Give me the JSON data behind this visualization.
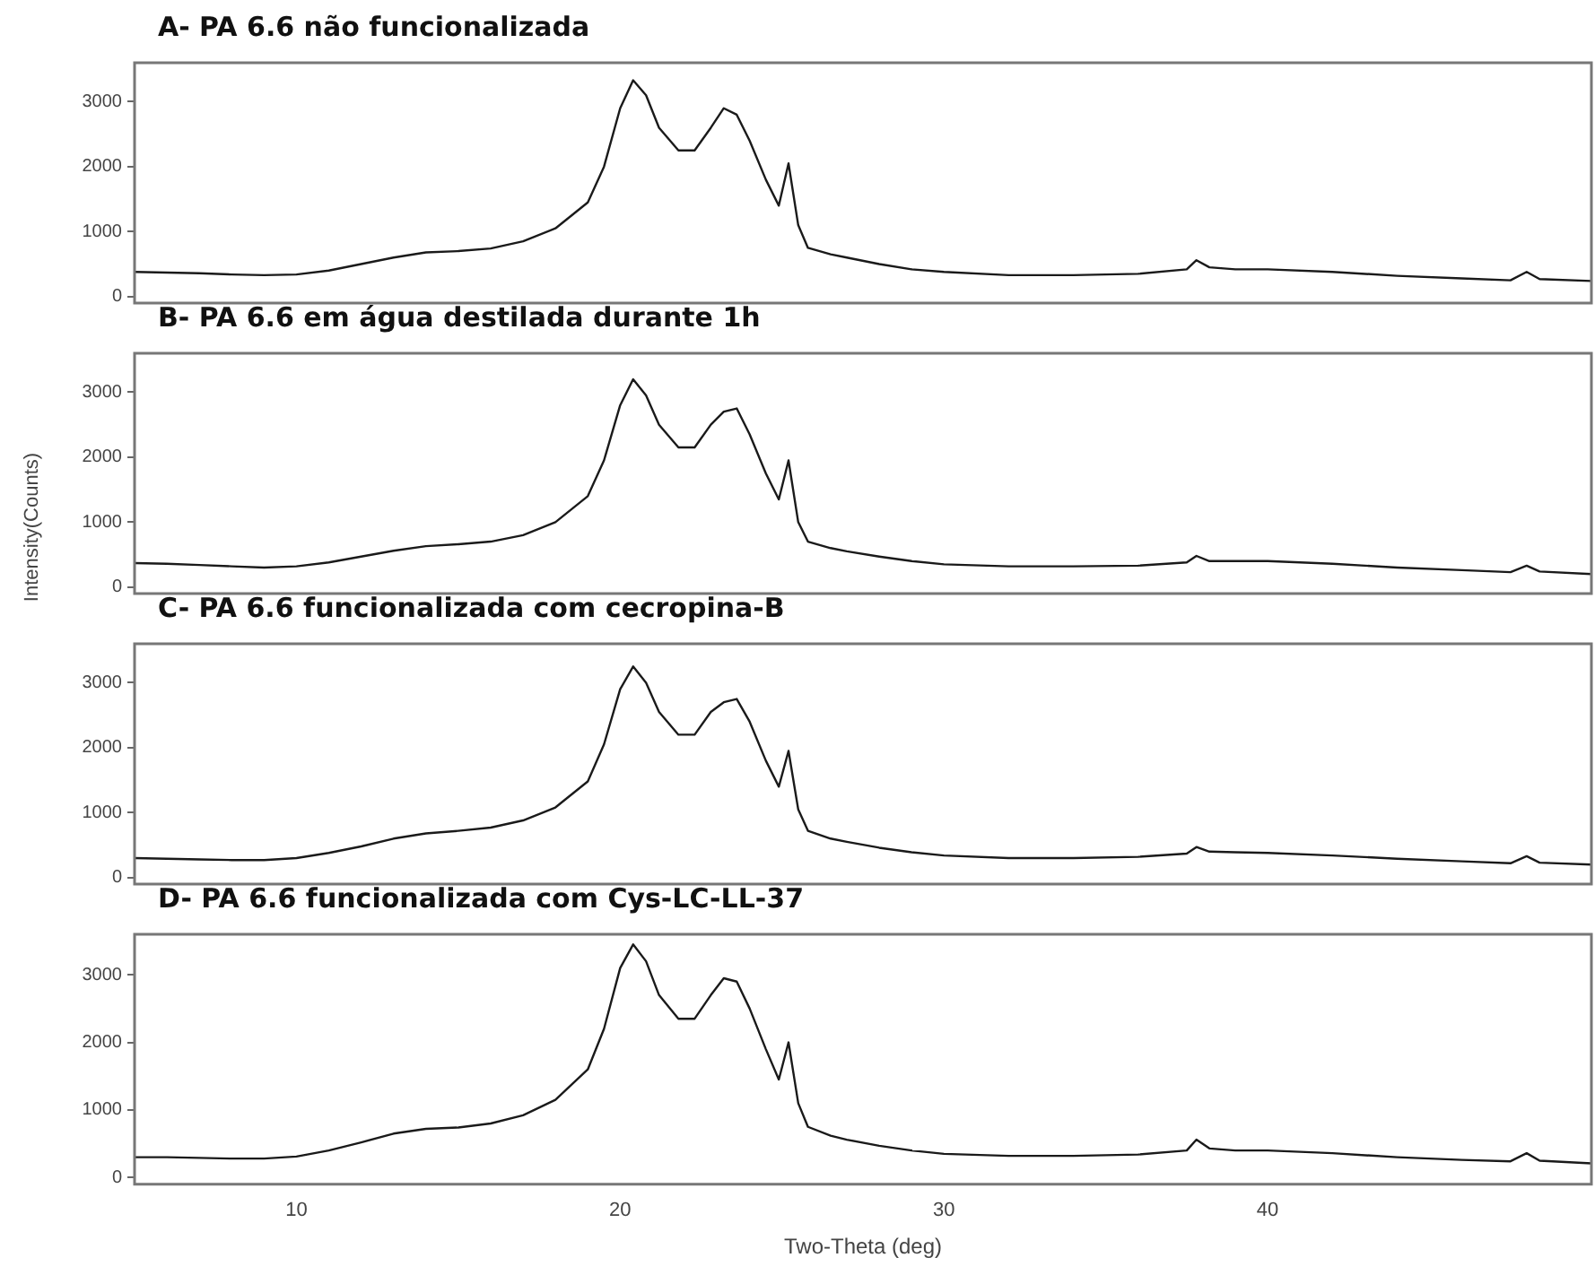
{
  "chart_data": [
    {
      "type": "line",
      "title": "A- PA 6.6 não funcionalizada",
      "xlim": [
        5,
        50
      ],
      "xticks": [
        10,
        20,
        30,
        40
      ],
      "ylim": [
        -100,
        3600
      ],
      "yticks": [
        0,
        1000,
        2000,
        3000
      ],
      "tick_labels": "y",
      "grid": false,
      "legend": false,
      "marker": "none",
      "line_style": "solid",
      "series": [
        {
          "color": "#1a1a1a",
          "x": [
            5,
            6,
            7,
            8,
            9,
            10,
            11,
            12,
            13,
            14,
            15,
            16,
            17,
            18,
            19,
            19.5,
            20,
            20.4,
            20.8,
            21.2,
            21.8,
            22.3,
            22.8,
            23.2,
            23.6,
            24,
            24.5,
            24.9,
            25.2,
            25.5,
            25.8,
            26.5,
            27,
            28,
            29,
            30,
            32,
            34,
            36,
            37.5,
            37.8,
            38.2,
            39,
            40,
            42,
            44,
            46,
            47.5,
            48,
            48.4,
            50
          ],
          "values": [
            380,
            370,
            360,
            340,
            330,
            340,
            400,
            500,
            600,
            680,
            700,
            740,
            850,
            1050,
            1450,
            2000,
            2900,
            3330,
            3100,
            2600,
            2250,
            2250,
            2600,
            2900,
            2800,
            2400,
            1800,
            1400,
            2050,
            1100,
            750,
            650,
            600,
            500,
            420,
            380,
            330,
            330,
            350,
            420,
            560,
            450,
            420,
            420,
            380,
            320,
            280,
            250,
            380,
            270,
            240
          ]
        }
      ]
    },
    {
      "type": "line",
      "title": "B- PA 6.6 em água destilada durante 1h",
      "ylabel": "Intensity(Counts)",
      "xlim": [
        5,
        50
      ],
      "xticks": [
        10,
        20,
        30,
        40
      ],
      "ylim": [
        -100,
        3600
      ],
      "yticks": [
        0,
        1000,
        2000,
        3000
      ],
      "tick_labels": "y",
      "grid": false,
      "legend": false,
      "marker": "none",
      "line_style": "solid",
      "series": [
        {
          "color": "#1a1a1a",
          "x": [
            5,
            6,
            7,
            8,
            9,
            10,
            11,
            12,
            13,
            14,
            15,
            16,
            17,
            18,
            19,
            19.5,
            20,
            20.4,
            20.8,
            21.2,
            21.8,
            22.3,
            22.8,
            23.2,
            23.6,
            24,
            24.5,
            24.9,
            25.2,
            25.5,
            25.8,
            26.5,
            27,
            28,
            29,
            30,
            32,
            34,
            36,
            37.5,
            37.8,
            38.2,
            39,
            40,
            42,
            44,
            46,
            47.5,
            48,
            48.4,
            50
          ],
          "values": [
            370,
            360,
            340,
            320,
            300,
            320,
            380,
            470,
            560,
            630,
            660,
            700,
            800,
            1000,
            1400,
            1950,
            2800,
            3200,
            2950,
            2500,
            2150,
            2150,
            2500,
            2700,
            2750,
            2350,
            1750,
            1350,
            1950,
            1000,
            700,
            600,
            550,
            470,
            400,
            350,
            320,
            320,
            330,
            380,
            480,
            400,
            400,
            400,
            360,
            300,
            260,
            230,
            330,
            240,
            200
          ]
        }
      ]
    },
    {
      "type": "line",
      "title": "C- PA 6.6 funcionalizada com cecropina-B",
      "xlim": [
        5,
        50
      ],
      "xticks": [
        10,
        20,
        30,
        40
      ],
      "ylim": [
        -100,
        3600
      ],
      "yticks": [
        0,
        1000,
        2000,
        3000
      ],
      "tick_labels": "y",
      "grid": false,
      "legend": false,
      "marker": "none",
      "line_style": "solid",
      "series": [
        {
          "color": "#1a1a1a",
          "x": [
            5,
            6,
            7,
            8,
            9,
            10,
            11,
            12,
            13,
            14,
            15,
            16,
            17,
            18,
            19,
            19.5,
            20,
            20.4,
            20.8,
            21.2,
            21.8,
            22.3,
            22.8,
            23.2,
            23.6,
            24,
            24.5,
            24.9,
            25.2,
            25.5,
            25.8,
            26.5,
            27,
            28,
            29,
            30,
            32,
            34,
            36,
            37.5,
            37.8,
            38.2,
            39,
            40,
            42,
            44,
            46,
            47.5,
            48,
            48.4,
            50
          ],
          "values": [
            300,
            290,
            280,
            270,
            270,
            300,
            380,
            480,
            600,
            680,
            720,
            770,
            880,
            1080,
            1480,
            2050,
            2900,
            3250,
            3000,
            2550,
            2200,
            2200,
            2550,
            2700,
            2750,
            2400,
            1800,
            1400,
            1950,
            1050,
            720,
            600,
            550,
            460,
            390,
            340,
            300,
            300,
            320,
            370,
            470,
            400,
            390,
            380,
            340,
            290,
            250,
            220,
            330,
            230,
            200
          ]
        }
      ]
    },
    {
      "type": "line",
      "title": "D- PA 6.6 funcionalizada com Cys-LC-LL-37",
      "xlabel": "Two-Theta (deg)",
      "xlim": [
        5,
        50
      ],
      "xticks": [
        10,
        20,
        30,
        40
      ],
      "ylim": [
        -100,
        3600
      ],
      "yticks": [
        0,
        1000,
        2000,
        3000
      ],
      "grid": false,
      "legend": false,
      "marker": "none",
      "line_style": "solid",
      "series": [
        {
          "color": "#1a1a1a",
          "x": [
            5,
            6,
            7,
            8,
            9,
            10,
            11,
            12,
            13,
            14,
            15,
            16,
            17,
            18,
            19,
            19.5,
            20,
            20.4,
            20.8,
            21.2,
            21.8,
            22.3,
            22.8,
            23.2,
            23.6,
            24,
            24.5,
            24.9,
            25.2,
            25.5,
            25.8,
            26.5,
            27,
            28,
            29,
            30,
            32,
            34,
            36,
            37.5,
            37.8,
            38.2,
            39,
            40,
            42,
            44,
            46,
            47.5,
            48,
            48.4,
            50
          ],
          "values": [
            300,
            300,
            290,
            280,
            280,
            310,
            400,
            520,
            650,
            720,
            740,
            800,
            920,
            1150,
            1600,
            2200,
            3100,
            3450,
            3200,
            2700,
            2350,
            2350,
            2700,
            2950,
            2900,
            2500,
            1900,
            1450,
            2000,
            1100,
            750,
            620,
            560,
            470,
            400,
            350,
            320,
            320,
            340,
            400,
            560,
            430,
            400,
            400,
            360,
            300,
            260,
            240,
            360,
            250,
            210
          ]
        }
      ]
    }
  ]
}
